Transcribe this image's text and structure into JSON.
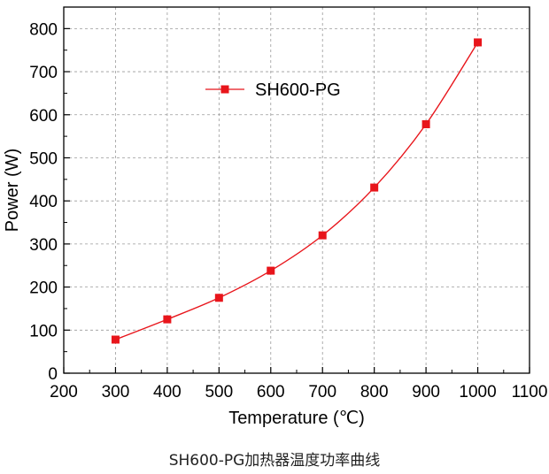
{
  "caption": "SH600-PG加热器温度功率曲线",
  "chart_data": {
    "type": "line",
    "title": "",
    "xlabel": "Temperature (℃)",
    "ylabel": "Power (W)",
    "xlim": [
      200,
      1100
    ],
    "ylim": [
      0,
      850
    ],
    "xticks": [
      200,
      300,
      400,
      500,
      600,
      700,
      800,
      900,
      1000,
      1100
    ],
    "yticks": [
      0,
      100,
      200,
      300,
      400,
      500,
      600,
      700,
      800
    ],
    "grid": true,
    "legend_position": "top-center",
    "series": [
      {
        "name": "SH600-PG",
        "color": "#e8151b",
        "marker": "square",
        "x": [
          300,
          400,
          500,
          600,
          700,
          800,
          900,
          1000
        ],
        "y": [
          78,
          125,
          175,
          238,
          320,
          431,
          578,
          768
        ]
      }
    ]
  }
}
